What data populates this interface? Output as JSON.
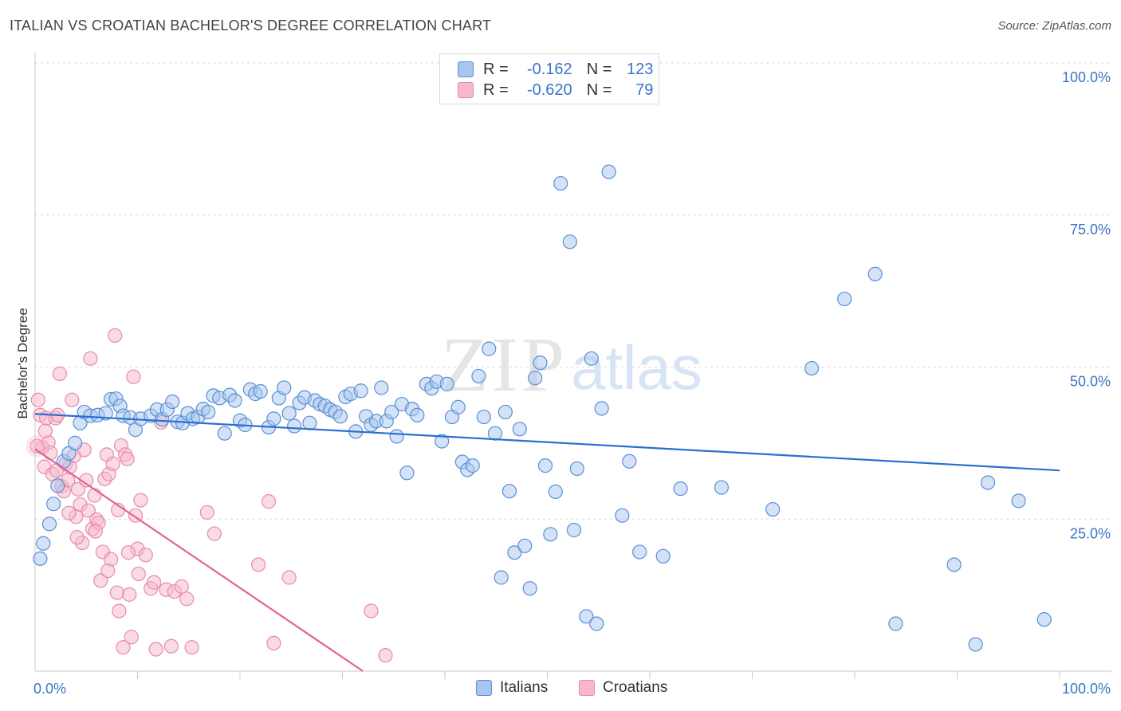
{
  "title": "ITALIAN VS CROATIAN BACHELOR'S DEGREE CORRELATION CHART",
  "source": "Source: ZipAtlas.com",
  "watermark": {
    "zip": "ZIP",
    "atlas": "atlas"
  },
  "legend": {
    "r_label": "R =",
    "n_label": "N =",
    "italians": {
      "r": "-0.162",
      "n": "123"
    },
    "croatians": {
      "r": "-0.620",
      "n": "79"
    }
  },
  "bottom_legend": {
    "italians": "Italians",
    "croatians": "Croatians"
  },
  "colors": {
    "italians_fill": "#a8c6ee",
    "italians_stroke": "#5a8fd6",
    "italians_line": "#2a6fcf",
    "croatians_fill": "#f6b8ca",
    "croatians_stroke": "#e98aa8",
    "croatians_line": "#e2628f",
    "axis_text": "#3a74c8",
    "grid": "#d9d9d9"
  },
  "chart_data": {
    "type": "scatter",
    "title": "ITALIAN VS CROATIAN BACHELOR'S DEGREE CORRELATION CHART",
    "xlabel": "",
    "ylabel": "Bachelor's Degree",
    "xlim": [
      0,
      100
    ],
    "ylim": [
      0,
      100
    ],
    "x_tick_labels": [
      {
        "value": 0,
        "label": "0.0%"
      },
      {
        "value": 100,
        "label": "100.0%"
      }
    ],
    "y_tick_labels": [
      {
        "value": 25,
        "label": "25.0%"
      },
      {
        "value": 50,
        "label": "50.0%"
      },
      {
        "value": 75,
        "label": "75.0%"
      },
      {
        "value": 100,
        "label": "100.0%"
      }
    ],
    "series": [
      {
        "name": "Italians",
        "r": -0.162,
        "n": 123,
        "trend": [
          [
            0,
            42.3
          ],
          [
            100,
            33.0
          ]
        ],
        "points": [
          [
            0.5,
            18.5
          ],
          [
            0.8,
            21.0
          ],
          [
            1.4,
            24.2
          ],
          [
            1.8,
            27.5
          ],
          [
            2.2,
            30.5
          ],
          [
            2.8,
            34.5
          ],
          [
            3.3,
            35.8
          ],
          [
            3.9,
            37.5
          ],
          [
            4.4,
            40.8
          ],
          [
            4.8,
            42.6
          ],
          [
            5.4,
            42.0
          ],
          [
            6.1,
            42.1
          ],
          [
            6.9,
            42.4
          ],
          [
            7.4,
            44.7
          ],
          [
            7.9,
            44.8
          ],
          [
            8.3,
            43.6
          ],
          [
            8.6,
            42.0
          ],
          [
            9.3,
            41.7
          ],
          [
            9.8,
            39.7
          ],
          [
            10.3,
            41.5
          ],
          [
            11.3,
            42.0
          ],
          [
            11.9,
            43.0
          ],
          [
            12.4,
            41.4
          ],
          [
            12.9,
            43.0
          ],
          [
            13.4,
            44.3
          ],
          [
            13.9,
            41.0
          ],
          [
            14.4,
            40.8
          ],
          [
            14.9,
            42.4
          ],
          [
            15.4,
            41.5
          ],
          [
            15.9,
            41.8
          ],
          [
            16.4,
            43.1
          ],
          [
            16.9,
            42.6
          ],
          [
            17.4,
            45.3
          ],
          [
            18.0,
            44.9
          ],
          [
            18.5,
            39.1
          ],
          [
            19.0,
            45.4
          ],
          [
            19.5,
            44.5
          ],
          [
            20.0,
            41.2
          ],
          [
            20.5,
            40.5
          ],
          [
            21.0,
            46.3
          ],
          [
            21.5,
            45.6
          ],
          [
            22.0,
            46.0
          ],
          [
            22.8,
            40.1
          ],
          [
            23.3,
            41.5
          ],
          [
            23.8,
            44.9
          ],
          [
            24.3,
            46.6
          ],
          [
            24.8,
            42.4
          ],
          [
            25.3,
            40.3
          ],
          [
            25.8,
            44.1
          ],
          [
            26.3,
            45.0
          ],
          [
            26.8,
            40.8
          ],
          [
            27.3,
            44.5
          ],
          [
            27.8,
            43.9
          ],
          [
            28.3,
            43.6
          ],
          [
            28.8,
            43.0
          ],
          [
            29.3,
            42.6
          ],
          [
            29.8,
            41.9
          ],
          [
            30.3,
            45.1
          ],
          [
            30.8,
            45.6
          ],
          [
            31.3,
            39.4
          ],
          [
            31.8,
            46.1
          ],
          [
            32.3,
            41.9
          ],
          [
            32.8,
            40.5
          ],
          [
            33.3,
            41.1
          ],
          [
            33.8,
            46.6
          ],
          [
            34.3,
            41.1
          ],
          [
            34.8,
            42.6
          ],
          [
            35.3,
            38.6
          ],
          [
            35.8,
            43.9
          ],
          [
            36.3,
            32.6
          ],
          [
            36.8,
            43.1
          ],
          [
            37.3,
            42.1
          ],
          [
            38.2,
            47.2
          ],
          [
            38.7,
            46.5
          ],
          [
            39.2,
            47.6
          ],
          [
            39.7,
            37.8
          ],
          [
            40.2,
            47.2
          ],
          [
            40.7,
            41.8
          ],
          [
            41.3,
            43.4
          ],
          [
            41.7,
            34.4
          ],
          [
            42.2,
            33.1
          ],
          [
            42.7,
            33.8
          ],
          [
            43.3,
            48.5
          ],
          [
            43.8,
            41.8
          ],
          [
            44.3,
            53.0
          ],
          [
            44.9,
            39.1
          ],
          [
            45.5,
            15.4
          ],
          [
            45.9,
            42.6
          ],
          [
            46.3,
            29.6
          ],
          [
            46.8,
            19.5
          ],
          [
            47.3,
            39.8
          ],
          [
            47.8,
            20.6
          ],
          [
            48.3,
            13.6
          ],
          [
            48.8,
            48.2
          ],
          [
            49.3,
            50.7
          ],
          [
            49.8,
            33.8
          ],
          [
            50.3,
            22.5
          ],
          [
            50.8,
            29.5
          ],
          [
            51.3,
            80.2
          ],
          [
            52.2,
            70.6
          ],
          [
            52.6,
            23.2
          ],
          [
            52.9,
            33.3
          ],
          [
            53.8,
            9.0
          ],
          [
            54.3,
            51.4
          ],
          [
            54.8,
            7.8
          ],
          [
            55.3,
            43.2
          ],
          [
            56.0,
            82.1
          ],
          [
            57.3,
            25.6
          ],
          [
            58.0,
            34.5
          ],
          [
            59.0,
            19.6
          ],
          [
            61.3,
            18.9
          ],
          [
            63.0,
            30.0
          ],
          [
            67.0,
            30.2
          ],
          [
            72.0,
            26.6
          ],
          [
            75.8,
            49.8
          ],
          [
            79.0,
            61.2
          ],
          [
            82.0,
            65.3
          ],
          [
            84.0,
            7.8
          ],
          [
            89.7,
            17.5
          ],
          [
            91.8,
            4.4
          ],
          [
            93.0,
            31.0
          ],
          [
            96.0,
            28.0
          ],
          [
            98.5,
            8.5
          ]
        ]
      },
      {
        "name": "Croatians",
        "r": -0.62,
        "n": 79,
        "trend": [
          [
            0,
            36.5
          ],
          [
            32,
            0.0
          ]
        ],
        "points": [
          [
            0.3,
            44.6
          ],
          [
            0.5,
            42.1
          ],
          [
            0.7,
            36.8
          ],
          [
            0.9,
            33.6
          ],
          [
            1.1,
            41.6
          ],
          [
            1.3,
            37.6
          ],
          [
            1.5,
            35.9
          ],
          [
            1.7,
            32.4
          ],
          [
            2.0,
            41.6
          ],
          [
            2.2,
            42.1
          ],
          [
            2.4,
            48.9
          ],
          [
            2.6,
            30.4
          ],
          [
            2.8,
            29.6
          ],
          [
            3.0,
            34.1
          ],
          [
            3.2,
            31.4
          ],
          [
            3.4,
            33.6
          ],
          [
            3.6,
            44.6
          ],
          [
            3.8,
            35.4
          ],
          [
            4.0,
            25.4
          ],
          [
            4.2,
            29.9
          ],
          [
            4.4,
            27.4
          ],
          [
            4.6,
            21.1
          ],
          [
            4.8,
            36.4
          ],
          [
            5.0,
            31.4
          ],
          [
            5.2,
            26.4
          ],
          [
            5.4,
            51.4
          ],
          [
            5.6,
            23.4
          ],
          [
            5.8,
            28.9
          ],
          [
            6.0,
            24.9
          ],
          [
            6.2,
            24.4
          ],
          [
            6.4,
            14.9
          ],
          [
            6.6,
            19.6
          ],
          [
            6.8,
            31.6
          ],
          [
            7.0,
            35.6
          ],
          [
            7.2,
            32.4
          ],
          [
            7.4,
            18.4
          ],
          [
            7.6,
            34.1
          ],
          [
            7.8,
            55.2
          ],
          [
            8.0,
            12.9
          ],
          [
            8.2,
            9.9
          ],
          [
            8.4,
            37.1
          ],
          [
            8.6,
            3.9
          ],
          [
            8.8,
            35.6
          ],
          [
            9.0,
            34.9
          ],
          [
            9.2,
            12.6
          ],
          [
            9.4,
            5.6
          ],
          [
            9.6,
            48.4
          ],
          [
            9.8,
            25.6
          ],
          [
            10.0,
            20.1
          ],
          [
            10.3,
            28.1
          ],
          [
            10.8,
            19.1
          ],
          [
            11.3,
            13.6
          ],
          [
            11.6,
            14.6
          ],
          [
            11.8,
            3.6
          ],
          [
            12.3,
            40.9
          ],
          [
            12.8,
            13.4
          ],
          [
            13.3,
            4.1
          ],
          [
            13.6,
            13.1
          ],
          [
            14.3,
            13.9
          ],
          [
            14.8,
            11.9
          ],
          [
            15.3,
            3.9
          ],
          [
            16.8,
            26.1
          ],
          [
            17.5,
            22.6
          ],
          [
            21.8,
            17.5
          ],
          [
            22.8,
            27.9
          ],
          [
            23.3,
            4.6
          ],
          [
            24.8,
            15.4
          ],
          [
            32.8,
            9.9
          ],
          [
            34.2,
            2.6
          ],
          [
            0.2,
            37.0
          ],
          [
            1.0,
            39.5
          ],
          [
            2.1,
            33.0
          ],
          [
            3.3,
            26.0
          ],
          [
            4.1,
            22.0
          ],
          [
            5.9,
            23.0
          ],
          [
            7.1,
            16.5
          ],
          [
            8.1,
            26.5
          ],
          [
            9.1,
            19.5
          ],
          [
            10.1,
            16.0
          ]
        ]
      }
    ]
  }
}
